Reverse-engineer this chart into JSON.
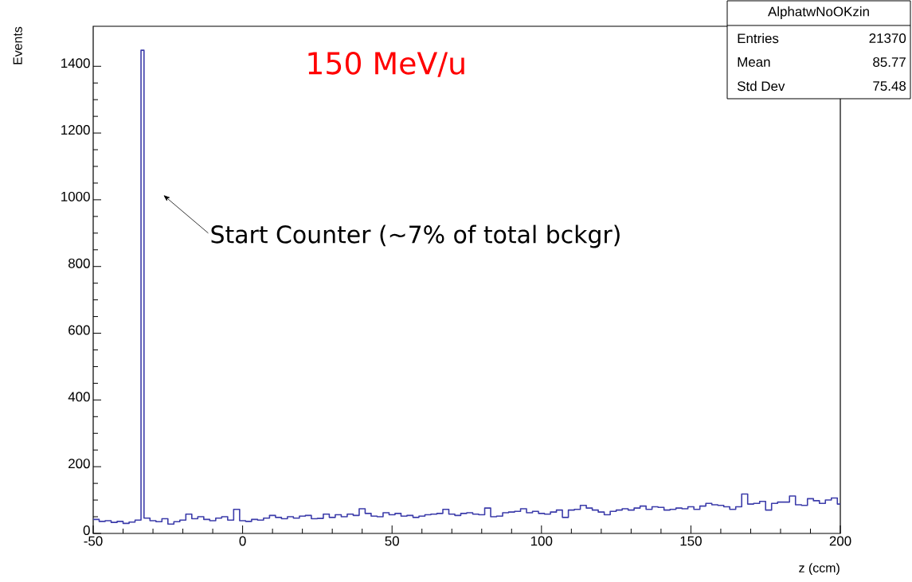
{
  "chart_data": {
    "type": "histogram",
    "xlabel": "z (ccm)",
    "ylabel": "Events",
    "bins": [
      -50,
      -48,
      -46,
      -44,
      -42,
      -40,
      -38,
      -36,
      -34,
      -33,
      -31,
      -29,
      -27,
      -25,
      -23,
      -21,
      -19,
      -17,
      -15,
      -13,
      -11,
      -9,
      -7,
      -5,
      -3,
      -1,
      1,
      3,
      5,
      7,
      9,
      11,
      13,
      15,
      17,
      19,
      21,
      23,
      25,
      27,
      29,
      31,
      33,
      35,
      37,
      39,
      41,
      43,
      45,
      47,
      49,
      51,
      53,
      55,
      57,
      59,
      61,
      63,
      65,
      67,
      69,
      71,
      73,
      75,
      77,
      79,
      81,
      83,
      85,
      87,
      89,
      91,
      93,
      95,
      97,
      99,
      101,
      103,
      105,
      107,
      109,
      111,
      113,
      115,
      117,
      119,
      121,
      123,
      125,
      127,
      129,
      131,
      133,
      135,
      137,
      139,
      141,
      143,
      145,
      147,
      149,
      151,
      153,
      155,
      157,
      159,
      161,
      163,
      165,
      167,
      169,
      171,
      173,
      175,
      177,
      179,
      181,
      183,
      185,
      187,
      189,
      191,
      193,
      195,
      197,
      199,
      200
    ],
    "values": [
      42,
      36,
      38,
      33,
      36,
      30,
      34,
      40,
      1448,
      46,
      38,
      35,
      44,
      28,
      35,
      40,
      58,
      44,
      50,
      42,
      38,
      46,
      50,
      40,
      72,
      38,
      36,
      42,
      40,
      46,
      54,
      48,
      44,
      50,
      46,
      52,
      54,
      44,
      45,
      58,
      48,
      56,
      50,
      58,
      54,
      74,
      60,
      52,
      50,
      62,
      56,
      60,
      52,
      54,
      48,
      52,
      56,
      58,
      60,
      72,
      58,
      54,
      60,
      62,
      58,
      56,
      76,
      50,
      52,
      62,
      64,
      66,
      74,
      62,
      66,
      60,
      58,
      64,
      70,
      48,
      70,
      72,
      84,
      76,
      70,
      64,
      56,
      66,
      70,
      74,
      70,
      76,
      82,
      72,
      80,
      78,
      70,
      72,
      76,
      74,
      80,
      72,
      82,
      90,
      86,
      84,
      80,
      72,
      80,
      118,
      88,
      90,
      96,
      70,
      90,
      94,
      94,
      112,
      86,
      84,
      104,
      98,
      90,
      100,
      106,
      88
    ],
    "color": "#3c3caa",
    "xlim": [
      -50,
      200
    ],
    "ylim": [
      0,
      1520
    ],
    "xticks": [
      -50,
      0,
      50,
      100,
      150,
      200
    ],
    "yticks": [
      0,
      200,
      400,
      600,
      800,
      1000,
      1200,
      1400
    ],
    "annotations": [
      "150 MeV/u",
      "Start Counter (~7% of total bckgr)",
      "AlphatwNoOKzin",
      "Entries",
      "21370",
      "Mean",
      "85.77",
      "Std Dev",
      "75.48"
    ]
  }
}
